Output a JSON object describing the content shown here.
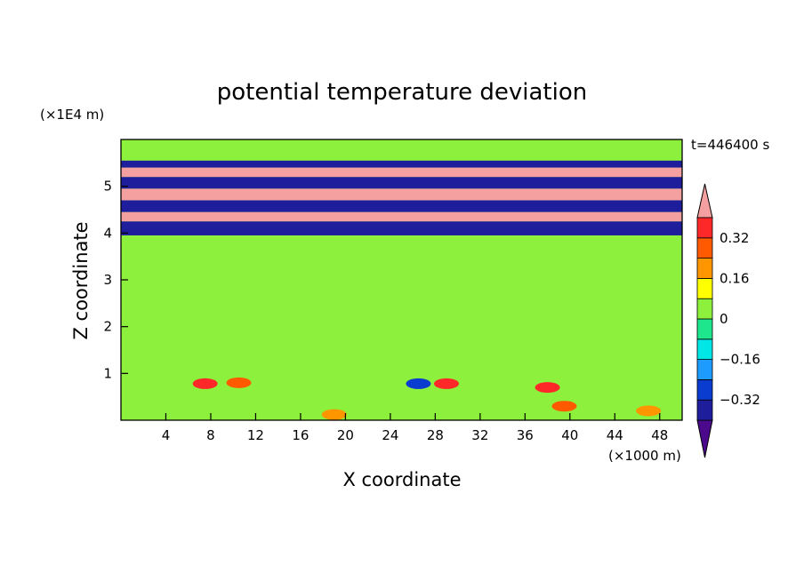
{
  "chart_data": {
    "type": "heatmap",
    "title": "potential temperature deviation",
    "time_label": "t=446400 s",
    "xlabel": "X coordinate",
    "ylabel": "Z coordinate",
    "x_unit": "(×1000 m)",
    "y_unit": "(×1E4 m)",
    "xlim": [
      0,
      50
    ],
    "ylim": [
      0,
      6
    ],
    "x_ticks": [
      "4",
      "8",
      "12",
      "16",
      "20",
      "24",
      "28",
      "32",
      "36",
      "40",
      "44",
      "48"
    ],
    "y_ticks": [
      "1",
      "2",
      "3",
      "4",
      "5"
    ],
    "colorbar": {
      "labels": [
        "0.32",
        "0.16",
        "0",
        "-0.16",
        "-0.32"
      ],
      "label_values": [
        0.32,
        0.16,
        0,
        -0.16,
        -0.32
      ],
      "levels": [
        -0.4,
        -0.32,
        -0.24,
        -0.16,
        -0.08,
        0,
        0.08,
        0.16,
        0.24,
        0.32,
        0.4
      ],
      "colors": [
        "#4b0a8c",
        "#1e1e9c",
        "#0a3ccf",
        "#1e9bff",
        "#00e5e5",
        "#1ee68c",
        "#8cf03c",
        "#ffff00",
        "#ff9600",
        "#ff5a00",
        "#ff2828",
        "#f5a0a0"
      ],
      "extend": "both"
    },
    "bands": [
      {
        "z": [
          0.0,
          0.85
        ],
        "value": 0.0
      },
      {
        "z": [
          0.85,
          3.95
        ],
        "value": 0.05
      },
      {
        "z": [
          3.95,
          4.25
        ],
        "value": -0.4
      },
      {
        "z": [
          4.25,
          4.45
        ],
        "value": 0.4
      },
      {
        "z": [
          4.45,
          4.7
        ],
        "value": -0.4
      },
      {
        "z": [
          4.7,
          4.95
        ],
        "value": 0.4
      },
      {
        "z": [
          4.95,
          5.2
        ],
        "value": -0.4
      },
      {
        "z": [
          5.2,
          5.4
        ],
        "value": 0.4
      },
      {
        "z": [
          5.4,
          5.55
        ],
        "value": -0.4
      },
      {
        "z": [
          5.55,
          6.0
        ],
        "value": 0.05
      }
    ],
    "features": [
      {
        "x": 7.5,
        "z": 0.78,
        "value": 0.32
      },
      {
        "x": 10.5,
        "z": 0.8,
        "value": 0.3
      },
      {
        "x": 19,
        "z": 0.12,
        "value": 0.16
      },
      {
        "x": 26.5,
        "z": 0.78,
        "value": -0.32
      },
      {
        "x": 29,
        "z": 0.78,
        "value": 0.32
      },
      {
        "x": 38,
        "z": 0.7,
        "value": 0.35
      },
      {
        "x": 39.5,
        "z": 0.3,
        "value": 0.24
      },
      {
        "x": 47,
        "z": 0.2,
        "value": 0.16
      }
    ]
  }
}
